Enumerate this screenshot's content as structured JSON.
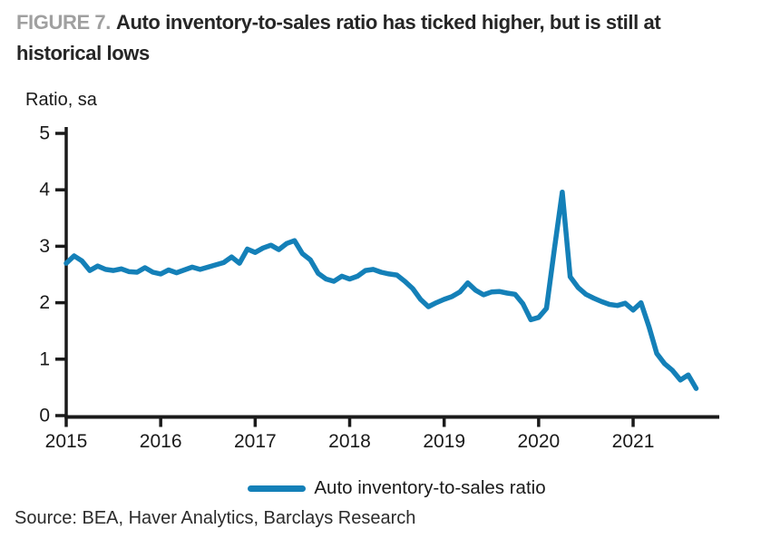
{
  "header": {
    "figure_label": "FIGURE 7.",
    "title": "Auto inventory-to-sales ratio has ticked higher, but is still at historical lows"
  },
  "chart_data": {
    "type": "line",
    "title": "Auto inventory-to-sales ratio has ticked higher, but is still at historical lows",
    "ylabel": "Ratio, sa",
    "xlabel": "",
    "ylim": [
      0,
      5
    ],
    "yticks": [
      0,
      1,
      2,
      3,
      4,
      5
    ],
    "xticks": [
      2015,
      2016,
      2017,
      2018,
      2019,
      2020,
      2021
    ],
    "x_start_year": 2015,
    "frequency": "monthly",
    "grid": false,
    "legend_position": "bottom",
    "series": [
      {
        "name": "Auto inventory-to-sales ratio",
        "color": "#1480b8",
        "values": [
          2.7,
          2.83,
          2.74,
          2.57,
          2.65,
          2.59,
          2.57,
          2.6,
          2.55,
          2.54,
          2.62,
          2.54,
          2.51,
          2.58,
          2.53,
          2.58,
          2.63,
          2.59,
          2.63,
          2.67,
          2.71,
          2.81,
          2.7,
          2.95,
          2.89,
          2.97,
          3.02,
          2.94,
          3.05,
          3.1,
          2.87,
          2.76,
          2.52,
          2.42,
          2.38,
          2.47,
          2.42,
          2.47,
          2.57,
          2.59,
          2.54,
          2.51,
          2.49,
          2.38,
          2.25,
          2.06,
          1.93,
          2.0,
          2.06,
          2.11,
          2.19,
          2.35,
          2.22,
          2.14,
          2.19,
          2.2,
          2.17,
          2.15,
          1.98,
          1.7,
          1.74,
          1.9,
          2.95,
          3.96,
          2.46,
          2.27,
          2.15,
          2.08,
          2.02,
          1.97,
          1.95,
          1.99,
          1.87,
          2.0,
          1.58,
          1.1,
          0.92,
          0.8,
          0.63,
          0.72,
          0.48
        ]
      }
    ]
  },
  "source": {
    "text": "Source: BEA, Haver Analytics, Barclays Research"
  },
  "colors": {
    "line": "#1480b8",
    "axis": "#1a1a1a",
    "title_text": "#262626",
    "figure_label": "#a0a0a0",
    "background": "#ffffff"
  }
}
